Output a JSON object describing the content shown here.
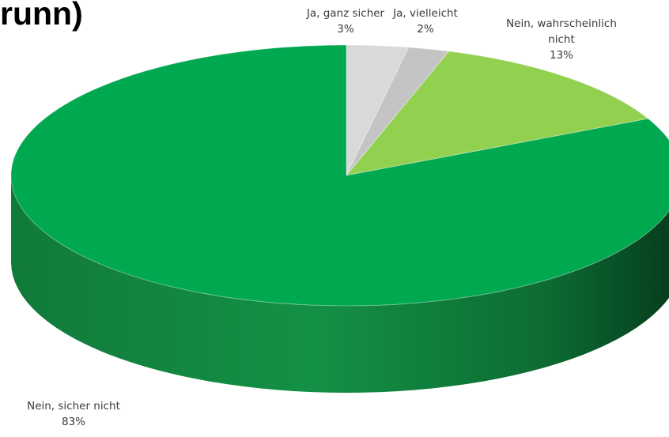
{
  "title_fragment": "runn)",
  "chart_data": {
    "type": "pie",
    "title": "runn)",
    "categories": [
      "Ja, ganz sicher",
      "Ja, vielleicht",
      "Nein, wahrscheinlich nicht",
      "Nein, sicher nicht"
    ],
    "values": [
      3,
      2,
      13,
      83
    ],
    "value_labels": [
      "3%",
      "2%",
      "13%",
      "83%"
    ],
    "label_lines": [
      [
        "Ja, ganz sicher",
        "3%"
      ],
      [
        "Ja, vielleicht",
        "2%"
      ],
      [
        "Nein, wahrscheinlich",
        "nicht",
        "13%"
      ],
      [
        "Nein, sicher nicht",
        "83%"
      ]
    ],
    "colors": [
      "#d9d9d9",
      "#c4c4c4",
      "#92d050",
      "#00a84f"
    ],
    "style": "3d-pie",
    "legend": "none"
  }
}
